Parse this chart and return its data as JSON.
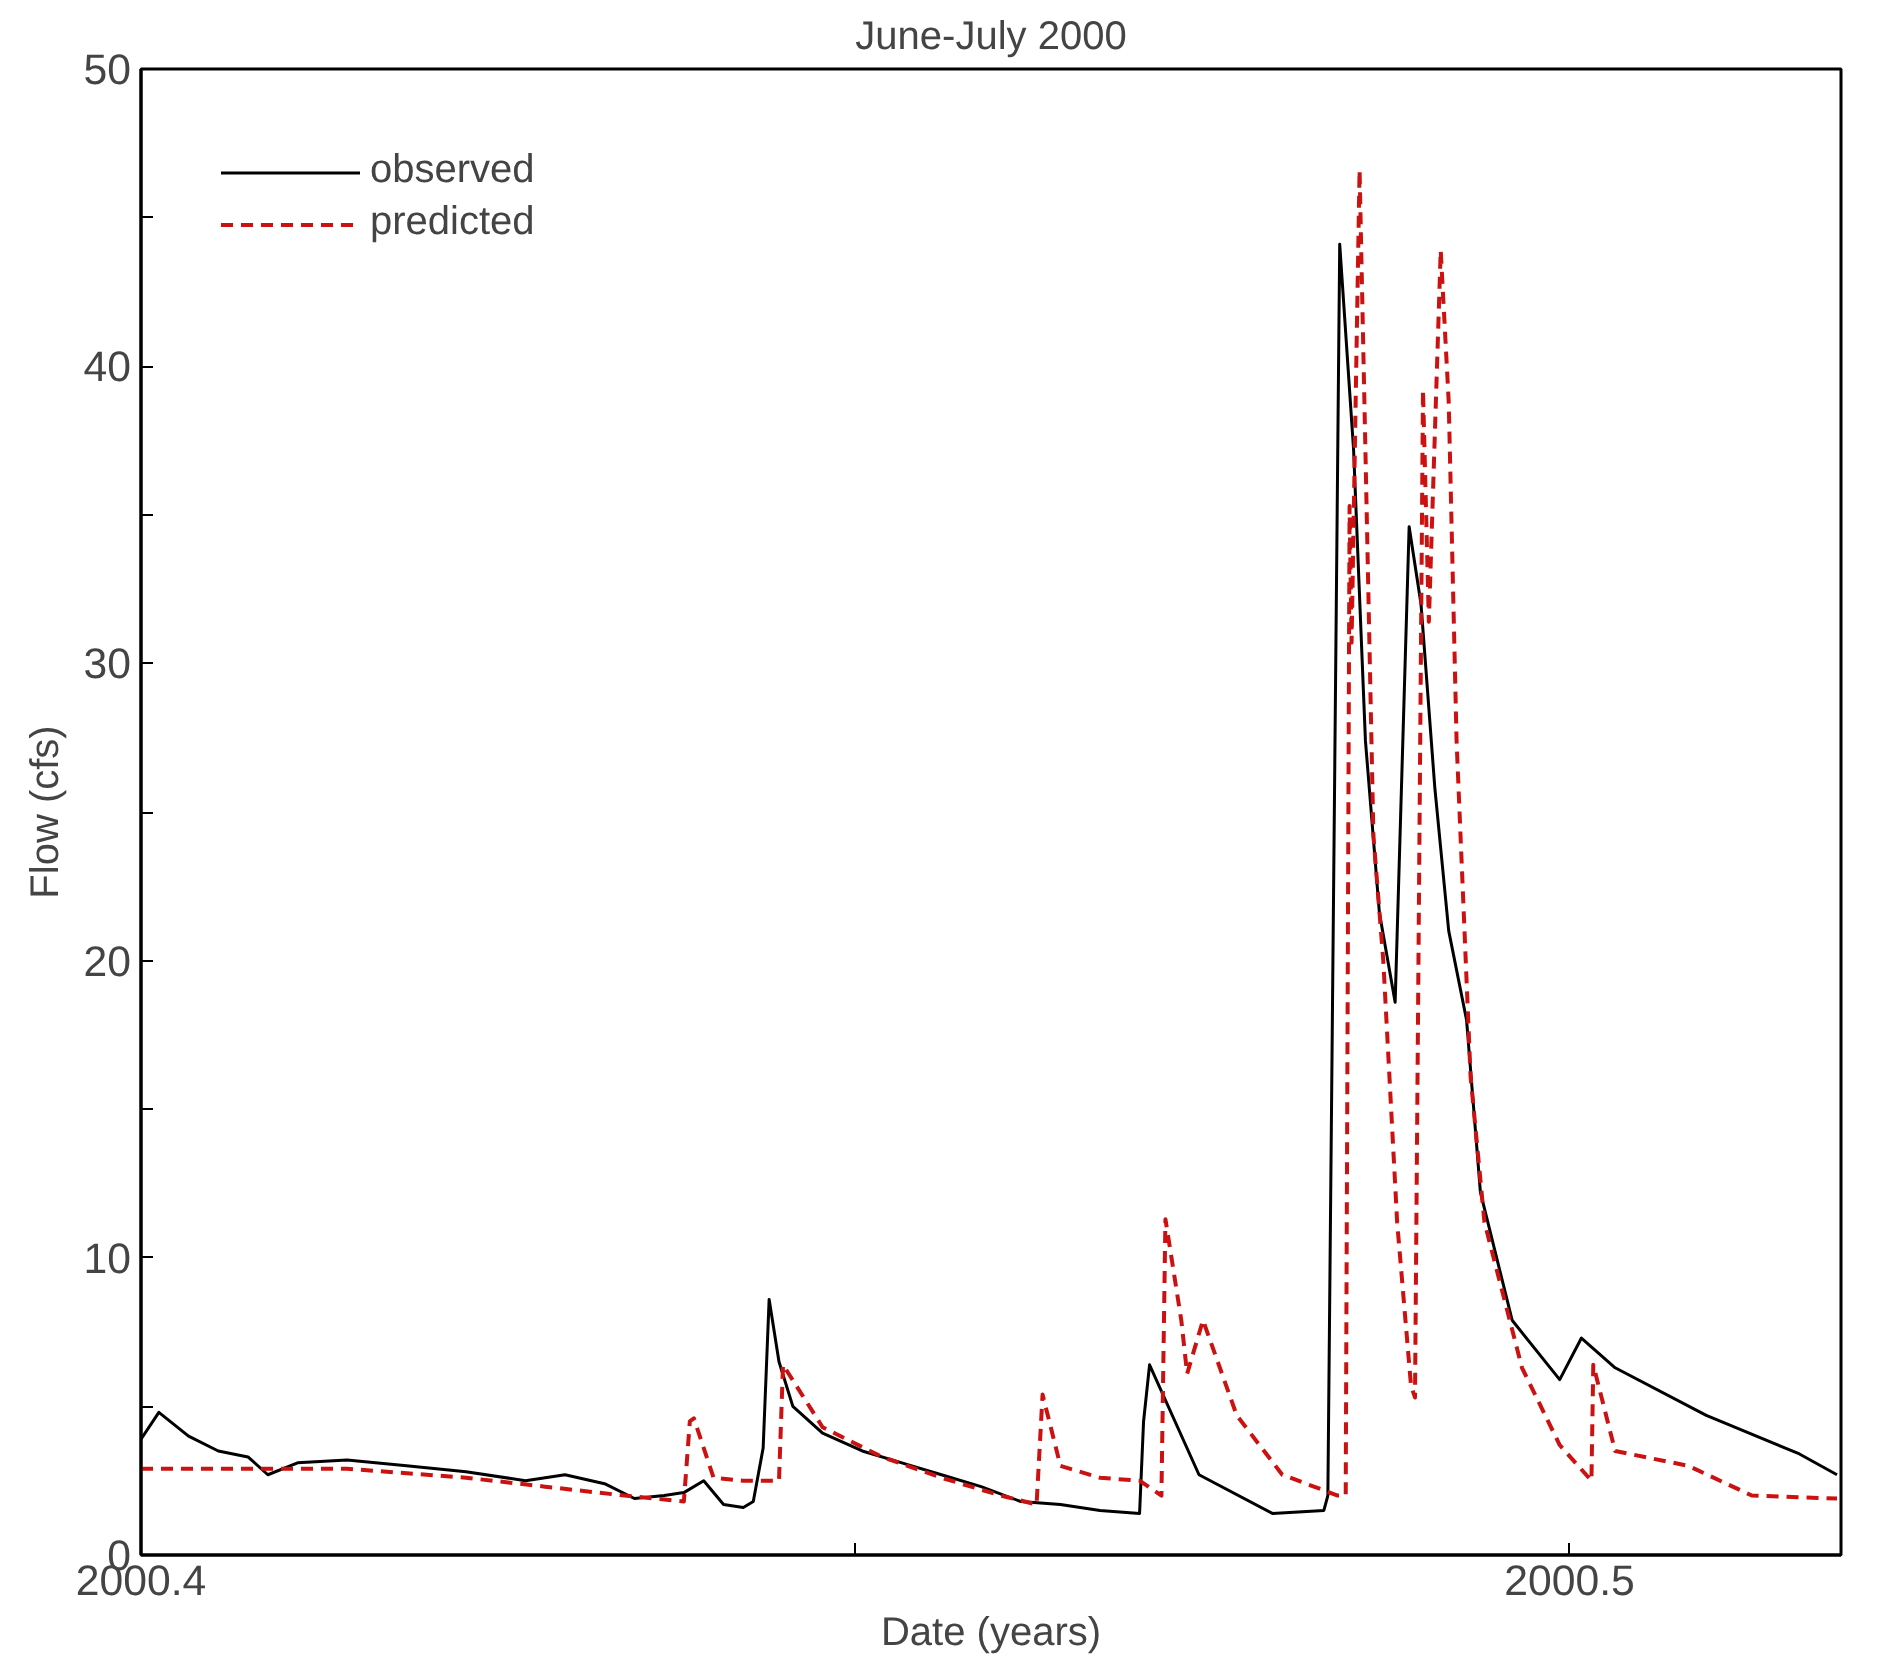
{
  "chart_data": {
    "type": "line",
    "title": "June-July 2000",
    "xlabel": "Date (years)",
    "ylabel": "Flow (cfs)",
    "xlim": [
      2000.4,
      2000.519
    ],
    "ylim": [
      0,
      50
    ],
    "xticks": [
      2000.4,
      {
        "value": 2000.45,
        "label": null
      },
      2000.5
    ],
    "yticks": [
      0,
      {
        "value": 5,
        "label": null
      },
      10,
      {
        "value": 15,
        "label": null
      },
      20,
      {
        "value": 25,
        "label": null
      },
      30,
      {
        "value": 35,
        "label": null
      },
      40,
      {
        "value": 45,
        "label": null
      },
      50
    ],
    "grid": false,
    "legend": "top left",
    "series": [
      {
        "name": "observed",
        "color": "#000000",
        "line_style": "solid",
        "x": [
          2000.4,
          2000.40125,
          2000.40333,
          2000.40541,
          2000.40749,
          2000.40888,
          2000.41096,
          2000.41442,
          2000.41859,
          2000.42275,
          2000.42691,
          2000.42968,
          2000.43245,
          2000.43454,
          2000.43662,
          2000.438,
          2000.43939,
          2000.44078,
          2000.44216,
          2000.44286,
          2000.44355,
          2000.44397,
          2000.44466,
          2000.44563,
          2000.44771,
          2000.45049,
          2000.45326,
          2000.45603,
          2000.45881,
          2000.46158,
          2000.46436,
          2000.46713,
          2000.4699,
          2000.47018,
          2000.4706,
          2000.47406,
          2000.4792,
          2000.4828,
          2000.48308,
          2000.48391,
          2000.48488,
          2000.48571,
          2000.48669,
          2000.48779,
          2000.48877,
          2000.4896,
          2000.49057,
          2000.49154,
          2000.49279,
          2000.49376,
          2000.49598,
          2000.49931,
          2000.50083,
          2000.50319,
          2000.50957,
          2000.51609,
          2000.51872
        ],
        "values": [
          3.9,
          4.8,
          4.0,
          3.5,
          3.3,
          2.7,
          3.1,
          3.2,
          3.0,
          2.8,
          2.5,
          2.7,
          2.4,
          1.9,
          2.0,
          2.1,
          2.5,
          1.7,
          1.6,
          1.8,
          3.6,
          8.6,
          6.5,
          5.0,
          4.1,
          3.5,
          3.1,
          2.7,
          2.3,
          1.8,
          1.7,
          1.5,
          1.4,
          4.5,
          6.4,
          2.7,
          1.4,
          1.5,
          2.0,
          44.1,
          37.2,
          27.4,
          21.6,
          18.6,
          34.6,
          32.0,
          25.8,
          21.0,
          18.0,
          12.2,
          7.9,
          5.9,
          7.3,
          6.3,
          4.7,
          3.4,
          2.7
        ]
      },
      {
        "name": "predicted",
        "color": "#cc1111",
        "line_style": "dashed",
        "x": [
          2000.4,
          2000.41442,
          2000.42275,
          2000.42829,
          2000.43384,
          2000.438,
          2000.43842,
          2000.4387,
          2000.44008,
          2000.44216,
          2000.44466,
          2000.44494,
          2000.44771,
          2000.45187,
          2000.45603,
          2000.46019,
          2000.46269,
          2000.46311,
          2000.46436,
          2000.46713,
          2000.4699,
          2000.47143,
          2000.47171,
          2000.47282,
          2000.47323,
          2000.47434,
          2000.4767,
          2000.47989,
          2000.48377,
          2000.48433,
          2000.4846,
          2000.48474,
          2000.4853,
          2000.48627,
          2000.48696,
          2000.48793,
          2000.4889,
          2000.48918,
          2000.48974,
          2000.49015,
          2000.49098,
          2000.49154,
          2000.49209,
          2000.49307,
          2000.49404,
          2000.49667,
          2000.49931,
          2000.50153,
          2000.50166,
          2000.50319,
          2000.50832,
          2000.51276,
          2000.51872
        ],
        "values": [
          2.9,
          2.9,
          2.6,
          2.3,
          2.0,
          1.8,
          4.5,
          4.6,
          2.6,
          2.5,
          2.5,
          6.4,
          4.3,
          3.3,
          2.6,
          2.0,
          1.7,
          5.4,
          3.0,
          2.6,
          2.5,
          2.0,
          11.3,
          7.9,
          6.1,
          7.9,
          4.7,
          2.7,
          2.0,
          2.0,
          35.3,
          30.7,
          46.6,
          24.2,
          20.0,
          11.2,
          5.7,
          5.3,
          39.2,
          31.4,
          43.9,
          38.8,
          27.4,
          16.1,
          11.2,
          6.3,
          3.7,
          2.5,
          6.4,
          3.5,
          3.0,
          2.0,
          1.9
        ]
      }
    ]
  }
}
